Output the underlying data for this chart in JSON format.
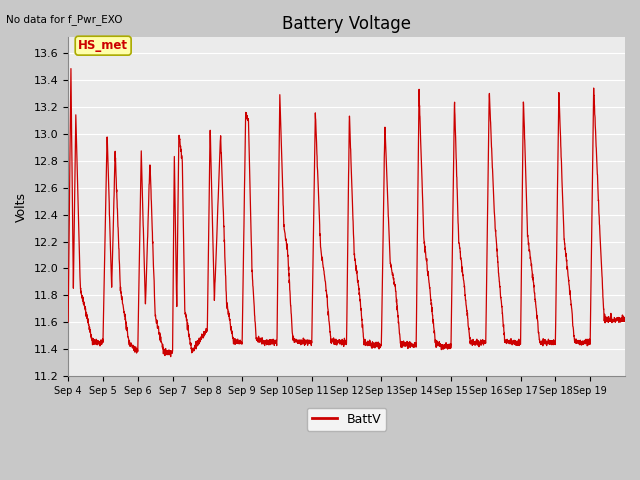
{
  "title": "Battery Voltage",
  "subtitle": "No data for f_Pwr_EXO",
  "ylabel": "Volts",
  "legend_label": "BattV",
  "line_color": "#cc0000",
  "plot_bg": "#ebebeb",
  "fig_bg": "#c8c8c8",
  "ylim": [
    11.2,
    13.72
  ],
  "yticks": [
    11.2,
    11.4,
    11.6,
    11.8,
    12.0,
    12.2,
    12.4,
    12.6,
    12.8,
    13.0,
    13.2,
    13.4,
    13.6
  ],
  "xtick_labels": [
    "Sep 4",
    "Sep 5",
    "Sep 6",
    "Sep 7",
    "Sep 8",
    "Sep 9",
    "Sep 10",
    "Sep 11",
    "Sep 12",
    "Sep 13",
    "Sep 14",
    "Sep 15",
    "Sep 16",
    "Sep 17",
    "Sep 18",
    "Sep 19"
  ],
  "annotation_box": "HS_met",
  "annotation_color": "#cc0000",
  "annotation_bg": "#ffffaa",
  "annotation_border": "#aaaa00",
  "grid_color": "#ffffff",
  "title_fontsize": 12,
  "label_fontsize": 9,
  "tick_fontsize": 8
}
